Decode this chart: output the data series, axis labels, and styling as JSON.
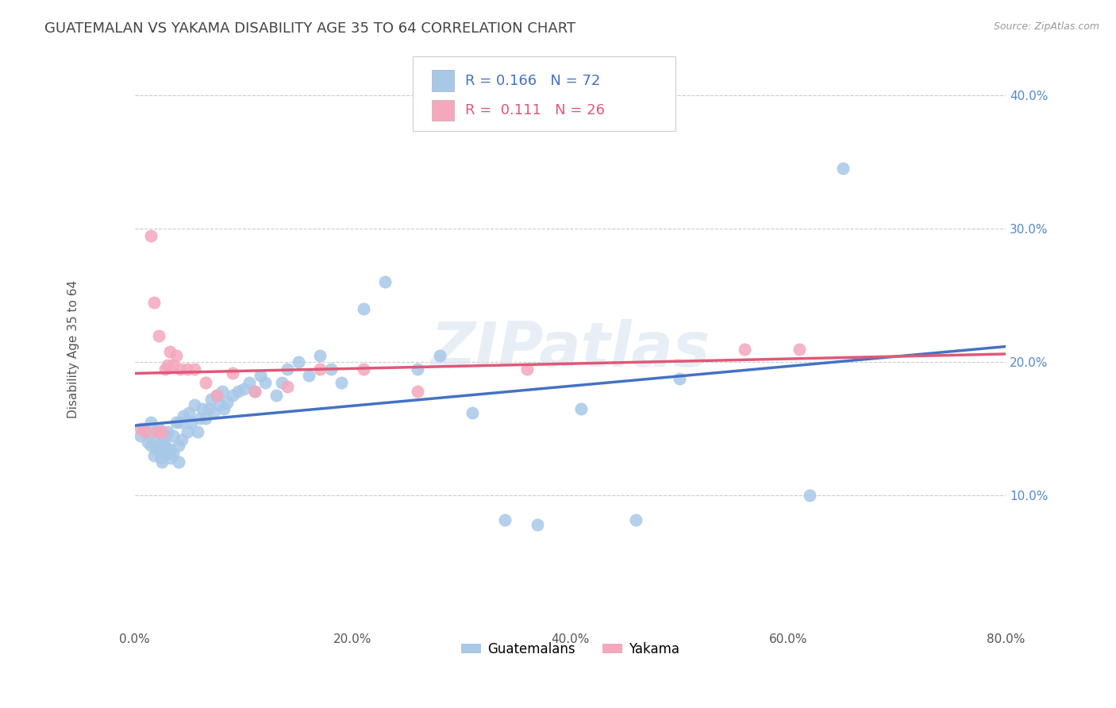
{
  "title": "GUATEMALAN VS YAKAMA DISABILITY AGE 35 TO 64 CORRELATION CHART",
  "source": "Source: ZipAtlas.com",
  "ylabel": "Disability Age 35 to 64",
  "xlim": [
    0.0,
    0.8
  ],
  "ylim": [
    0.0,
    0.42
  ],
  "xtick_labels": [
    "0.0%",
    "20.0%",
    "40.0%",
    "60.0%",
    "80.0%"
  ],
  "xtick_vals": [
    0.0,
    0.2,
    0.4,
    0.6,
    0.8
  ],
  "ytick_labels": [
    "10.0%",
    "20.0%",
    "30.0%",
    "40.0%"
  ],
  "ytick_vals": [
    0.1,
    0.2,
    0.3,
    0.4
  ],
  "guatemalan_color": "#a8c8e8",
  "yakama_color": "#f4a8bc",
  "guatemalan_line_color": "#4472c4",
  "yakama_line_color": "#e05878",
  "legend_r_guatemalan": "0.166",
  "legend_n_guatemalan": 72,
  "legend_r_yakama": "0.111",
  "legend_n_yakama": 26,
  "background_color": "#ffffff",
  "title_color": "#444444",
  "title_fontsize": 13,
  "guatemalan_x": [
    0.005,
    0.008,
    0.01,
    0.012,
    0.015,
    0.015,
    0.018,
    0.018,
    0.02,
    0.02,
    0.022,
    0.022,
    0.024,
    0.025,
    0.025,
    0.028,
    0.028,
    0.03,
    0.03,
    0.032,
    0.033,
    0.035,
    0.035,
    0.038,
    0.04,
    0.04,
    0.042,
    0.043,
    0.045,
    0.048,
    0.05,
    0.052,
    0.055,
    0.058,
    0.06,
    0.062,
    0.065,
    0.068,
    0.07,
    0.072,
    0.075,
    0.078,
    0.08,
    0.082,
    0.085,
    0.09,
    0.095,
    0.1,
    0.105,
    0.11,
    0.115,
    0.12,
    0.13,
    0.135,
    0.14,
    0.15,
    0.16,
    0.17,
    0.18,
    0.19,
    0.21,
    0.23,
    0.26,
    0.28,
    0.31,
    0.34,
    0.37,
    0.41,
    0.46,
    0.5,
    0.62,
    0.65
  ],
  "guatemalan_y": [
    0.145,
    0.15,
    0.148,
    0.14,
    0.138,
    0.155,
    0.142,
    0.13,
    0.135,
    0.148,
    0.135,
    0.15,
    0.128,
    0.14,
    0.125,
    0.138,
    0.145,
    0.132,
    0.148,
    0.135,
    0.128,
    0.145,
    0.132,
    0.155,
    0.138,
    0.125,
    0.155,
    0.142,
    0.16,
    0.148,
    0.162,
    0.155,
    0.168,
    0.148,
    0.158,
    0.165,
    0.158,
    0.165,
    0.172,
    0.162,
    0.175,
    0.168,
    0.178,
    0.165,
    0.17,
    0.175,
    0.178,
    0.18,
    0.185,
    0.178,
    0.19,
    0.185,
    0.175,
    0.185,
    0.195,
    0.2,
    0.19,
    0.205,
    0.195,
    0.185,
    0.24,
    0.26,
    0.195,
    0.205,
    0.162,
    0.082,
    0.078,
    0.165,
    0.082,
    0.188,
    0.1,
    0.345
  ],
  "yakama_x": [
    0.005,
    0.01,
    0.015,
    0.018,
    0.02,
    0.022,
    0.025,
    0.028,
    0.03,
    0.032,
    0.035,
    0.038,
    0.042,
    0.048,
    0.055,
    0.065,
    0.075,
    0.09,
    0.11,
    0.14,
    0.17,
    0.21,
    0.26,
    0.36,
    0.56,
    0.61
  ],
  "yakama_y": [
    0.15,
    0.148,
    0.295,
    0.245,
    0.148,
    0.22,
    0.148,
    0.195,
    0.198,
    0.208,
    0.198,
    0.205,
    0.195,
    0.195,
    0.195,
    0.185,
    0.175,
    0.192,
    0.178,
    0.182,
    0.195,
    0.195,
    0.178,
    0.195,
    0.21,
    0.21
  ]
}
